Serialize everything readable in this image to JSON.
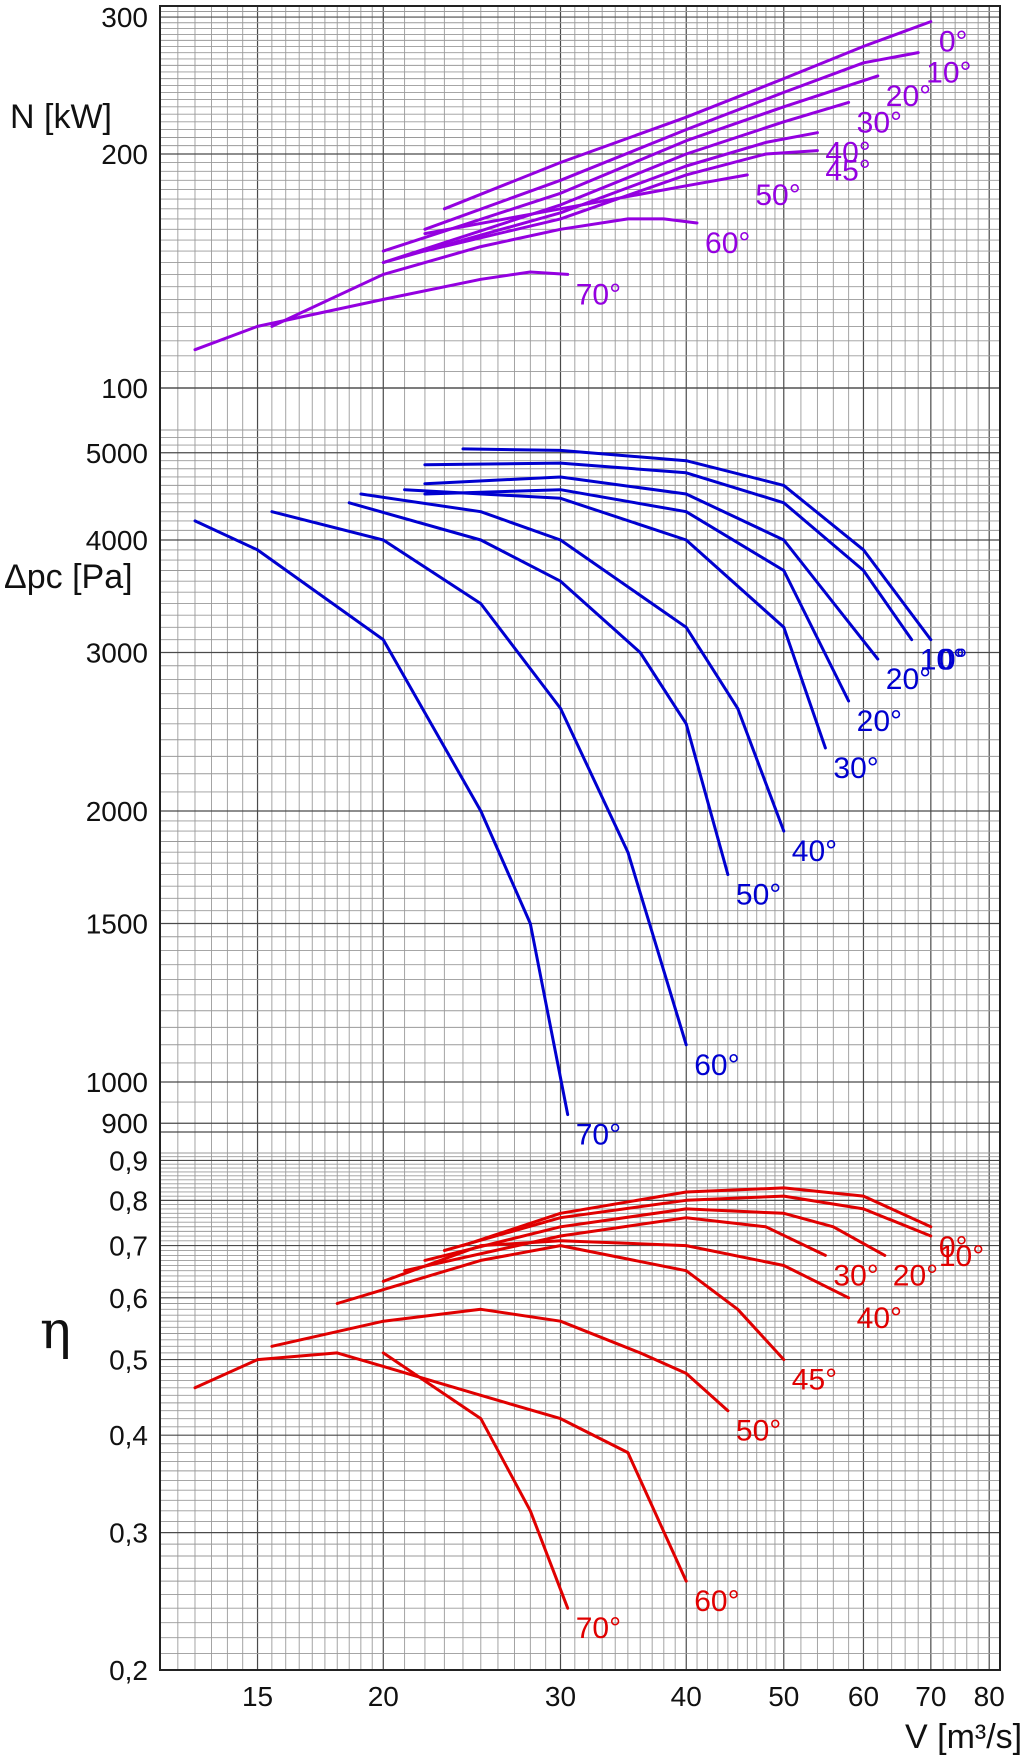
{
  "chart_data": [
    {
      "type": "line",
      "ylabel": "N [kW]",
      "y_scale": "log",
      "ylim": [
        100,
        310
      ],
      "y_ticks": [
        100,
        200,
        300
      ],
      "y_tick_labels": [
        "100",
        "200",
        "300"
      ],
      "color": "#9400e0",
      "series": [
        {
          "name": "0°",
          "x": [
            23,
            30,
            40,
            50,
            60,
            70
          ],
          "y": [
            170,
            195,
            223,
            250,
            275,
            296
          ]
        },
        {
          "name": "10°",
          "x": [
            22,
            30,
            40,
            50,
            60,
            68
          ],
          "y": [
            160,
            185,
            215,
            240,
            262,
            270
          ]
        },
        {
          "name": "20°",
          "x": [
            20,
            30,
            40,
            50,
            62
          ],
          "y": [
            150,
            178,
            208,
            230,
            252
          ]
        },
        {
          "name": "30°",
          "x": [
            20,
            30,
            40,
            50,
            58
          ],
          "y": [
            145,
            172,
            200,
            220,
            233
          ]
        },
        {
          "name": "40°",
          "x": [
            20,
            30,
            40,
            48,
            54
          ],
          "y": [
            145,
            168,
            193,
            207,
            213
          ]
        },
        {
          "name": "45°",
          "x": [
            22,
            30,
            40,
            48,
            54
          ],
          "y": [
            150,
            165,
            188,
            200,
            202
          ]
        },
        {
          "name": "50°",
          "x": [
            22,
            30,
            40,
            46
          ],
          "y": [
            158,
            170,
            182,
            188
          ]
        },
        {
          "name": "60°",
          "x": [
            15.5,
            20,
            25,
            30,
            35,
            38,
            41
          ],
          "y": [
            120,
            140,
            152,
            160,
            165,
            165,
            163
          ]
        },
        {
          "name": "70°",
          "x": [
            13,
            15,
            20,
            25,
            28,
            30.5
          ],
          "y": [
            112,
            120,
            130,
            138,
            141,
            140
          ]
        }
      ]
    },
    {
      "type": "line",
      "ylabel": "Δpc [Pa]",
      "y_scale": "log",
      "ylim": [
        880,
        5300
      ],
      "y_ticks": [
        900,
        1000,
        1500,
        2000,
        3000,
        4000,
        5000
      ],
      "y_tick_labels": [
        "900",
        "1000",
        "1500",
        "2000",
        "3000",
        "4000",
        "5000"
      ],
      "color": "#0000d0",
      "series": [
        {
          "name": "0°",
          "x": [
            24,
            30,
            40,
            50,
            60,
            70
          ],
          "y": [
            5050,
            5030,
            4900,
            4600,
            3900,
            3100
          ]
        },
        {
          "name": "10°",
          "x": [
            22,
            30,
            40,
            50,
            60,
            67
          ],
          "y": [
            4850,
            4870,
            4750,
            4400,
            3700,
            3100
          ]
        },
        {
          "name": "20°",
          "x": [
            22,
            30,
            40,
            50,
            62
          ],
          "y": [
            4620,
            4700,
            4500,
            4000,
            2950
          ]
        },
        {
          "name": "20°",
          "x": [
            22,
            30,
            40,
            50,
            58
          ],
          "y": [
            4500,
            4550,
            4300,
            3700,
            2650
          ]
        },
        {
          "name": "30°",
          "x": [
            21,
            30,
            40,
            50,
            55
          ],
          "y": [
            4550,
            4450,
            4000,
            3200,
            2350
          ]
        },
        {
          "name": "40°",
          "x": [
            19,
            25,
            30,
            40,
            45,
            50
          ],
          "y": [
            4500,
            4300,
            4000,
            3200,
            2600,
            1900
          ]
        },
        {
          "name": "50°",
          "x": [
            18.5,
            25,
            30,
            36,
            40,
            44
          ],
          "y": [
            4400,
            4000,
            3600,
            3000,
            2500,
            1700
          ]
        },
        {
          "name": "60°",
          "x": [
            15.5,
            20,
            25,
            30,
            35,
            40
          ],
          "y": [
            4300,
            4000,
            3400,
            2600,
            1800,
            1100
          ]
        },
        {
          "name": "70°",
          "x": [
            13,
            15,
            20,
            25,
            28,
            30.5
          ],
          "y": [
            4200,
            3900,
            3100,
            2000,
            1500,
            920
          ]
        }
      ]
    },
    {
      "type": "line",
      "ylabel": "η",
      "y_scale": "log",
      "ylim": [
        0.2,
        0.92
      ],
      "y_ticks": [
        0.2,
        0.3,
        0.4,
        0.5,
        0.6,
        0.7,
        0.8,
        0.9
      ],
      "y_tick_labels": [
        "0,2",
        "0,3",
        "0,4",
        "0,5",
        "0,6",
        "0,7",
        "0,8",
        "0,9"
      ],
      "xlabel": "V [m³/s]",
      "x_scale": "log",
      "xlim": [
        12,
        82
      ],
      "x_ticks": [
        15,
        20,
        30,
        40,
        50,
        60,
        70,
        80
      ],
      "x_tick_labels": [
        "15",
        "20",
        "30",
        "40",
        "50",
        "60",
        "70",
        "80"
      ],
      "color": "#e00000",
      "series": [
        {
          "name": "0°",
          "x": [
            24,
            30,
            40,
            50,
            60,
            70
          ],
          "y": [
            0.7,
            0.77,
            0.82,
            0.83,
            0.81,
            0.74
          ]
        },
        {
          "name": "10°",
          "x": [
            23,
            30,
            40,
            50,
            60,
            70
          ],
          "y": [
            0.69,
            0.76,
            0.8,
            0.81,
            0.78,
            0.72
          ]
        },
        {
          "name": "20°",
          "x": [
            22,
            30,
            40,
            50,
            56,
            63
          ],
          "y": [
            0.67,
            0.74,
            0.78,
            0.77,
            0.74,
            0.68
          ]
        },
        {
          "name": "30°",
          "x": [
            21,
            30,
            40,
            48,
            55
          ],
          "y": [
            0.65,
            0.72,
            0.76,
            0.74,
            0.68
          ]
        },
        {
          "name": "40°",
          "x": [
            20,
            25,
            30,
            40,
            50,
            58
          ],
          "y": [
            0.63,
            0.7,
            0.71,
            0.7,
            0.66,
            0.6
          ]
        },
        {
          "name": "45°",
          "x": [
            18,
            25,
            30,
            40,
            45,
            50
          ],
          "y": [
            0.59,
            0.67,
            0.7,
            0.65,
            0.58,
            0.5
          ]
        },
        {
          "name": "50°",
          "x": [
            15.5,
            20,
            25,
            30,
            36,
            40,
            44
          ],
          "y": [
            0.52,
            0.56,
            0.58,
            0.56,
            0.51,
            0.48,
            0.43
          ]
        },
        {
          "name": "60°",
          "x": [
            13,
            15,
            18,
            20,
            25,
            30,
            35,
            40
          ],
          "y": [
            0.46,
            0.5,
            0.51,
            0.49,
            0.45,
            0.42,
            0.38,
            0.26
          ]
        },
        {
          "name": "70°",
          "x": [
            20,
            25,
            28,
            30.5
          ],
          "y": [
            0.51,
            0.42,
            0.32,
            0.24
          ]
        }
      ]
    }
  ]
}
